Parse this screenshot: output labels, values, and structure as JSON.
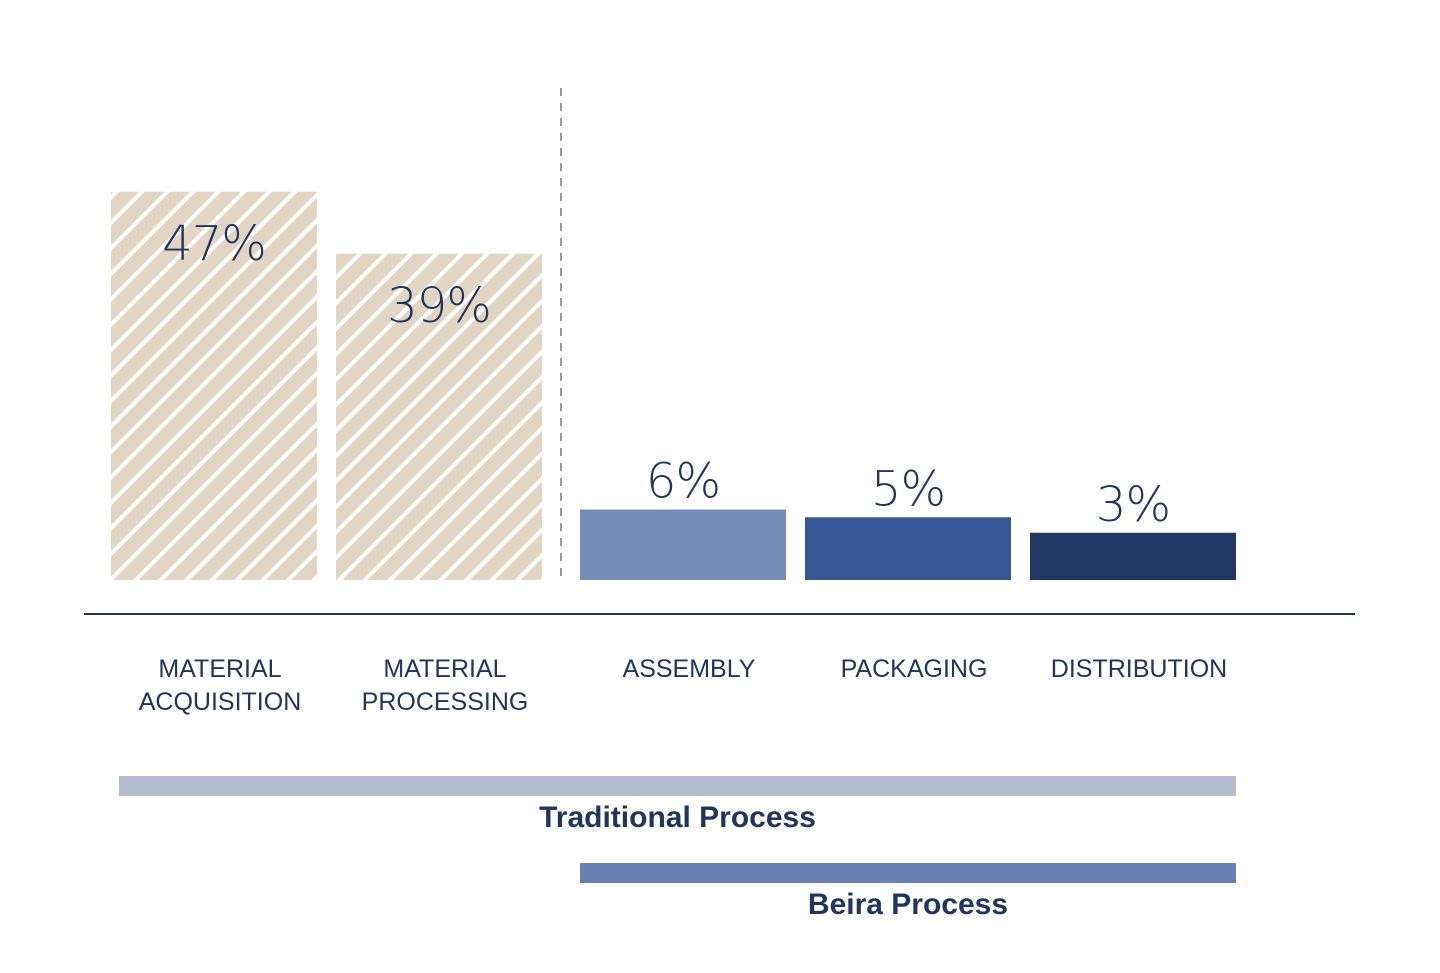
{
  "chart_data": {
    "type": "bar",
    "title": "",
    "xlabel": "",
    "ylabel": "",
    "ylim": [
      0,
      50
    ],
    "grid": false,
    "categories": [
      [
        "MATERIAL",
        "ACQUISITION"
      ],
      [
        "MATERIAL",
        "PROCESSING"
      ],
      [
        "ASSEMBLY"
      ],
      [
        "PACKAGING"
      ],
      [
        "DISTRIBUTION"
      ]
    ],
    "values": [
      47,
      39,
      6,
      5,
      3
    ],
    "value_labels": [
      "47%",
      "39%",
      "6%",
      "5%",
      "3%"
    ],
    "bar_colors": [
      "#e2d5c3",
      "#e2d5c3",
      "#768db7",
      "#385795",
      "#223763"
    ],
    "hatched": [
      true,
      true,
      false,
      false,
      false
    ],
    "annotations": [
      {
        "label": "Traditional Process",
        "spans": [
          0,
          4
        ],
        "color": "#b3bccf"
      },
      {
        "label": "Beira Process",
        "spans": [
          2,
          4
        ],
        "color": "#6a80b3"
      }
    ]
  }
}
